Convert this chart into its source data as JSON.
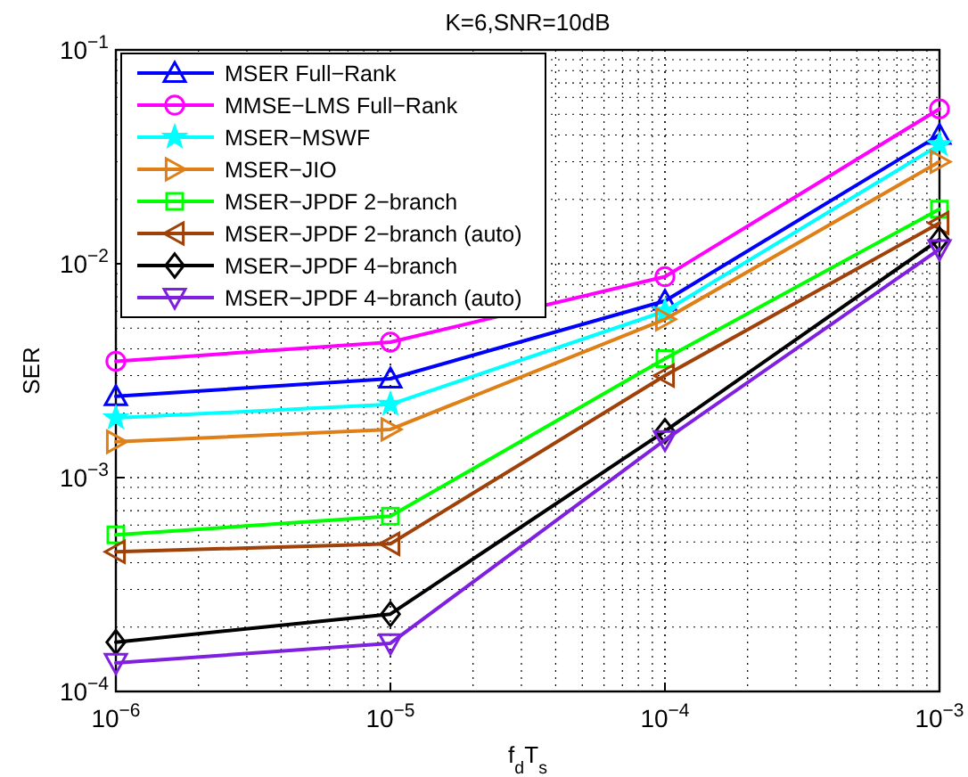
{
  "chart_data": {
    "type": "line",
    "title": "K=6,SNR=10dB",
    "xlabel": "f$_{d}$T$_{s}$",
    "ylabel": "SER",
    "log": "xy",
    "grid": true,
    "legend": "top left",
    "line_style": "solid",
    "x": [
      1e-06,
      1e-05,
      0.0001,
      0.001
    ],
    "xlim": [
      1e-06,
      0.001
    ],
    "xticks": [
      {
        "value": 1e-06,
        "label": "10$^{−6}$"
      },
      {
        "value": 1e-05,
        "label": "10$^{−5}$"
      },
      {
        "value": 0.0001,
        "label": "10$^{−4}$"
      },
      {
        "value": 0.001,
        "label": "10$^{−3}$"
      }
    ],
    "ylim": [
      0.0001,
      0.1
    ],
    "yticks": [
      {
        "value": 0.0001,
        "label": "10$^{−4}$"
      },
      {
        "value": 0.001,
        "label": "10$^{−3}$"
      },
      {
        "value": 0.01,
        "label": "10$^{−2}$"
      },
      {
        "value": 0.1,
        "label": "10$^{−1}$"
      }
    ],
    "series": [
      {
        "name": "MSER Full−Rank",
        "color": "#0000ff",
        "marker": "triangle",
        "values": [
          0.0024,
          0.0029,
          0.0067,
          0.04
        ]
      },
      {
        "name": "MMSE−LMS Full−Rank",
        "color": "#ff00ff",
        "marker": "circle",
        "values": [
          0.0035,
          0.0043,
          0.0087,
          0.053
        ]
      },
      {
        "name": "MSER−MSWF",
        "color": "#00ffff",
        "marker": "star",
        "values": [
          0.0019,
          0.0022,
          0.006,
          0.036
        ]
      },
      {
        "name": "MSER−JIO",
        "color": "#df7f18",
        "marker": "triangle-right",
        "values": [
          0.00147,
          0.00168,
          0.0055,
          0.03
        ]
      },
      {
        "name": "MSER−JPDF 2−branch",
        "color": "#00ff00",
        "marker": "square",
        "values": [
          0.00054,
          0.00066,
          0.0036,
          0.018
        ]
      },
      {
        "name": "MSER−JPDF 2−branch (auto)",
        "color": "#a0410a",
        "marker": "triangle-left",
        "values": [
          0.00045,
          0.00049,
          0.003,
          0.0155
        ]
      },
      {
        "name": "MSER−JPDF 4−branch",
        "color": "#000000",
        "marker": "diamond",
        "values": [
          0.00017,
          0.00023,
          0.00165,
          0.013
        ]
      },
      {
        "name": "MSER−JPDF 4−branch (auto)",
        "color": "#7f1fdf",
        "marker": "triangle-down",
        "values": [
          0.000136,
          0.000168,
          0.0015,
          0.0117
        ]
      }
    ]
  }
}
